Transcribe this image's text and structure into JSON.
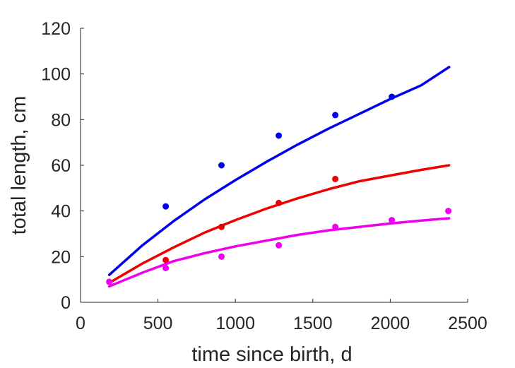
{
  "chart_data": {
    "type": "scatter",
    "title": "",
    "xlabel": "time since birth, d",
    "ylabel": "total length, cm",
    "xlim": [
      0,
      2500
    ],
    "ylim": [
      0,
      120
    ],
    "xticks": [
      0,
      500,
      1000,
      1500,
      2000,
      2500
    ],
    "yticks": [
      0,
      20,
      40,
      60,
      80,
      100,
      120
    ],
    "grid": false,
    "series": [
      {
        "color": "#0000ee",
        "points": [
          [
            550,
            42
          ],
          [
            910,
            60
          ],
          [
            1280,
            73
          ],
          [
            1645,
            82
          ],
          [
            2010,
            90
          ]
        ],
        "curve": {
          "x": [
            185,
            400,
            600,
            800,
            1000,
            1200,
            1400,
            1600,
            1800,
            2000,
            2200,
            2380
          ],
          "y": [
            12,
            25,
            35.5,
            45,
            53.5,
            61.5,
            69,
            76,
            82.5,
            89,
            95,
            103
          ]
        }
      },
      {
        "color": "#ee0000",
        "points": [
          [
            550,
            18.5
          ],
          [
            910,
            33
          ],
          [
            1280,
            43.5
          ],
          [
            1645,
            54
          ]
        ],
        "curve": {
          "x": [
            185,
            400,
            600,
            800,
            1000,
            1200,
            1400,
            1600,
            1800,
            2000,
            2200,
            2380
          ],
          "y": [
            8.5,
            17,
            24,
            30.5,
            36,
            41,
            45.5,
            49.5,
            53,
            55.5,
            58,
            60
          ]
        }
      },
      {
        "color": "#ee00ee",
        "points": [
          [
            185,
            9
          ],
          [
            550,
            15
          ],
          [
            910,
            20
          ],
          [
            1280,
            25
          ],
          [
            1645,
            33
          ],
          [
            2010,
            36
          ],
          [
            2375,
            40
          ]
        ],
        "curve": {
          "x": [
            185,
            400,
            600,
            800,
            1000,
            1200,
            1400,
            1600,
            1800,
            2000,
            2200,
            2380
          ],
          "y": [
            7,
            13,
            18,
            21.5,
            24.5,
            27,
            29.5,
            31.5,
            33,
            34.5,
            35.8,
            36.8
          ]
        }
      }
    ]
  }
}
